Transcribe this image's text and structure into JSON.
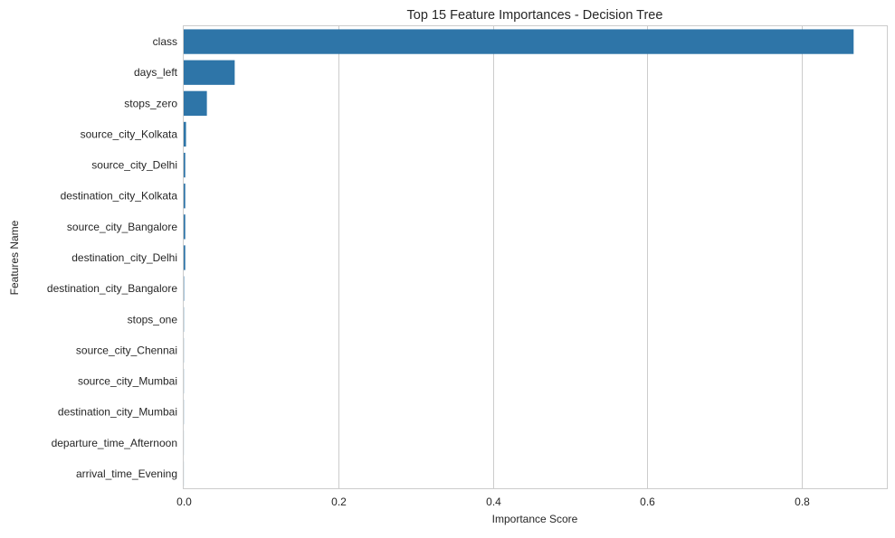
{
  "chart_data": {
    "type": "bar",
    "orientation": "horizontal",
    "title": "Top 15 Feature Importances - Decision Tree",
    "xlabel": "Importance Score",
    "ylabel": "Features Name",
    "xlim": [
      0,
      0.91
    ],
    "xticks": [
      {
        "value": 0.0,
        "label": "0.0"
      },
      {
        "value": 0.2,
        "label": "0.2"
      },
      {
        "value": 0.4,
        "label": "0.4"
      },
      {
        "value": 0.6,
        "label": "0.6"
      },
      {
        "value": 0.8,
        "label": "0.8"
      }
    ],
    "grid": "vertical",
    "color": "#2e75a8",
    "categories": [
      "class",
      "days_left",
      "stops_zero",
      "source_city_Kolkata",
      "source_city_Delhi",
      "destination_city_Kolkata",
      "source_city_Bangalore",
      "destination_city_Delhi",
      "destination_city_Bangalore",
      "stops_one",
      "source_city_Chennai",
      "source_city_Mumbai",
      "destination_city_Mumbai",
      "departure_time_Afternoon",
      "arrival_time_Evening"
    ],
    "values": [
      0.867,
      0.066,
      0.03,
      0.003,
      0.002,
      0.002,
      0.002,
      0.002,
      0.0005,
      0.0003,
      0.0002,
      0.0002,
      0.0002,
      0.0001,
      0.0001
    ]
  }
}
